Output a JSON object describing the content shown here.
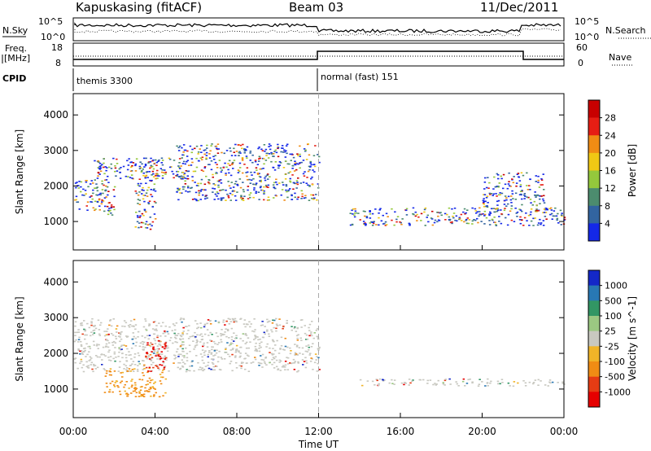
{
  "header": {
    "title": "Kapuskasing (fitACF)",
    "beam": "Beam 03",
    "date": "11/Dec/2011"
  },
  "strip": {
    "nsky_label": "N.Sky",
    "nsearch_label": "N.Search",
    "nsky_ticks": [
      "10^5",
      "10^0"
    ],
    "nsearch_ticks": [
      "10^5",
      "10^0"
    ],
    "freq_label_1": "Freq.",
    "freq_label_2": "[MHz]",
    "freq_ticks": [
      "18",
      "8"
    ],
    "nave_label": "Nave",
    "nave_ticks": [
      "60",
      "0"
    ],
    "cpid_label": "CPID",
    "cpid_1": "themis 3300",
    "cpid_2": "normal (fast) 151"
  },
  "chart_data": [
    {
      "type": "heatmap",
      "panel": "power",
      "title": "",
      "xlabel": "Time UT",
      "ylabel": "Slant Range [km]",
      "x_ticks": [
        "00:00",
        "04:00",
        "08:00",
        "12:00",
        "16:00",
        "20:00",
        "00:00"
      ],
      "y_ticks": [
        "1000",
        "2000",
        "3000",
        "4000"
      ],
      "ylim": [
        200,
        4600
      ],
      "colorbar_label": "Power [dB]",
      "colorbar_ticks": [
        "4",
        "8",
        "12",
        "16",
        "20",
        "24",
        "28"
      ],
      "colors": [
        "#1428e8",
        "#3264a0",
        "#4c8c6e",
        "#94c83c",
        "#f0c814",
        "#f08c14",
        "#e61e14",
        "#c80000"
      ],
      "echo_regions": [
        {
          "t_start": 0.0,
          "t_end": 2.0,
          "range_start": 1200,
          "range_end": 2200
        },
        {
          "t_start": 1.0,
          "t_end": 5.5,
          "range_start": 2200,
          "range_end": 2800
        },
        {
          "t_start": 3.0,
          "t_end": 4.0,
          "range_start": 800,
          "range_end": 2700
        },
        {
          "t_start": 5.0,
          "t_end": 12.0,
          "range_start": 1600,
          "range_end": 3200
        },
        {
          "t_start": 13.5,
          "t_end": 24.0,
          "range_start": 900,
          "range_end": 1400
        },
        {
          "t_start": 20.0,
          "t_end": 23.0,
          "range_start": 1300,
          "range_end": 2400
        }
      ]
    },
    {
      "type": "heatmap",
      "panel": "velocity",
      "title": "",
      "xlabel": "Time UT",
      "ylabel": "Slant Range [km]",
      "x_ticks": [
        "00:00",
        "04:00",
        "08:00",
        "12:00",
        "16:00",
        "20:00",
        "00:00"
      ],
      "y_ticks": [
        "1000",
        "2000",
        "3000",
        "4000"
      ],
      "ylim": [
        200,
        4600
      ],
      "colorbar_label": "Velocity [m s^-1]",
      "colorbar_ticks": [
        "1000",
        "500",
        "100",
        "25",
        "-25",
        "-100",
        "-500",
        "-1000"
      ],
      "colors": [
        "#1428c8",
        "#2878b4",
        "#329664",
        "#9bc882",
        "#c8c8c0",
        "#f0b428",
        "#f08c14",
        "#e63c14",
        "#e60000"
      ],
      "echo_regions": [
        {
          "t_start": 0.0,
          "t_end": 12.0,
          "range_start": 1500,
          "range_end": 3000,
          "velocity": "ground scatter"
        },
        {
          "t_start": 1.5,
          "t_end": 4.5,
          "range_start": 800,
          "range_end": 1600,
          "velocity": "-100 to -500"
        },
        {
          "t_start": 3.5,
          "t_end": 4.5,
          "range_start": 1500,
          "range_end": 2400,
          "velocity": "-500 to -1000"
        },
        {
          "t_start": 14.0,
          "t_end": 24.0,
          "range_start": 1100,
          "range_end": 1300,
          "velocity": "ground scatter"
        }
      ]
    }
  ]
}
